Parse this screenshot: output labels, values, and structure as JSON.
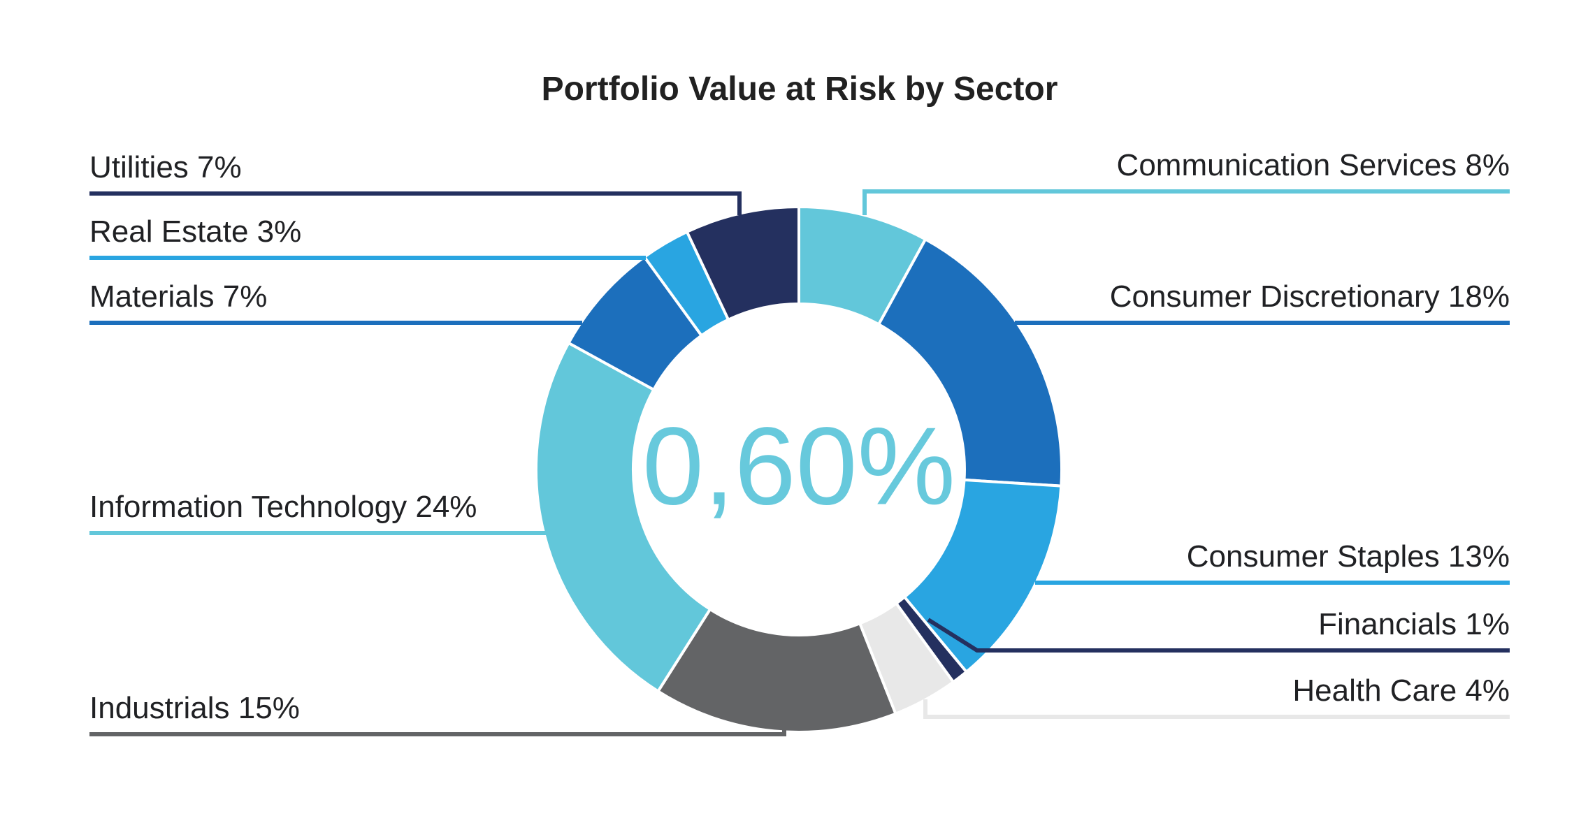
{
  "chart_data": {
    "type": "pie",
    "subtype": "donut",
    "title": "Portfolio Value at Risk by Sector",
    "center_label": "0,60%",
    "center_label_color": "#67C9DC",
    "donut_hole_ratio": 0.63,
    "start_angle_deg": 0,
    "direction": "clockwise",
    "legend_position": "outside-callout-labels",
    "background_color": "#FFFFFF",
    "label_text_color": "#202124",
    "title_color": "#212121",
    "series": [
      {
        "label": "Communication Services",
        "value": 8,
        "color": "#62C7DA",
        "label_side": "right"
      },
      {
        "label": "Consumer Discretionary",
        "value": 18,
        "color": "#1C6FBC",
        "label_side": "right"
      },
      {
        "label": "Consumer Staples",
        "value": 13,
        "color": "#29A5E1",
        "label_side": "right"
      },
      {
        "label": "Financials",
        "value": 1,
        "color": "#24305F",
        "label_side": "right"
      },
      {
        "label": "Health Care",
        "value": 4,
        "color": "#E8E8E8",
        "label_side": "right"
      },
      {
        "label": "Industrials",
        "value": 15,
        "color": "#636466",
        "label_side": "left"
      },
      {
        "label": "Information Technology",
        "value": 24,
        "color": "#62C7DA",
        "label_side": "left"
      },
      {
        "label": "Materials",
        "value": 7,
        "color": "#1C6FBC",
        "label_side": "left"
      },
      {
        "label": "Real Estate",
        "value": 3,
        "color": "#29A5E1",
        "label_side": "left"
      },
      {
        "label": "Utilities",
        "value": 7,
        "color": "#24305F",
        "label_side": "left"
      }
    ]
  }
}
